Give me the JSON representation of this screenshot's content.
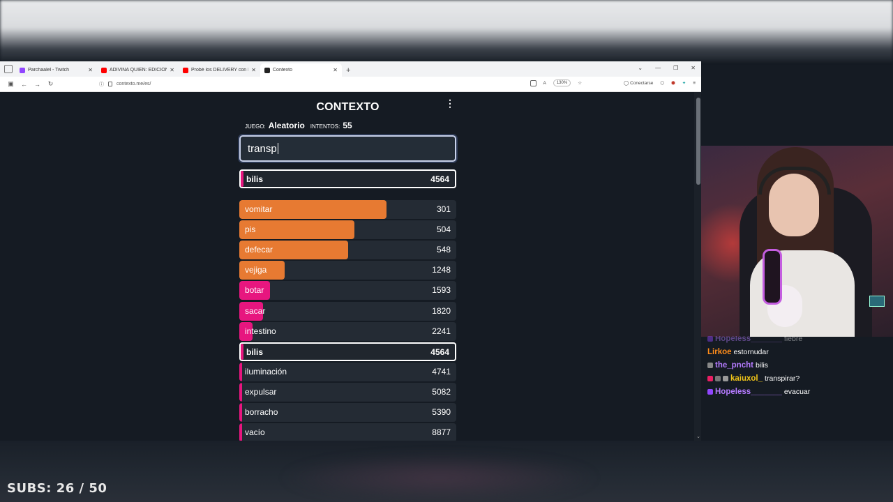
{
  "browser": {
    "tabs": [
      {
        "label": "Parchaalel - Twitch",
        "fav_color": "#9146ff",
        "active": false
      },
      {
        "label": "ADIVINA QUIÉN: EDICIÓN FAM",
        "fav_color": "#ff0000",
        "active": false
      },
      {
        "label": "Probé los DELIVERY con PEORE",
        "fav_color": "#ff0000",
        "active": false
      },
      {
        "label": "Contexto",
        "fav_color": "#222222",
        "active": true
      }
    ],
    "new_tab_label": "+",
    "url": "contexto.me/es/",
    "zoom": "130%",
    "sign_in_label": "Conectarse"
  },
  "game": {
    "title": "CONTEXTO",
    "menu_icon": "⋮",
    "game_label": "JUEGO:",
    "game_value": "Aleatorio",
    "attempts_label": "INTENTOS:",
    "attempts_value": "55",
    "input_value": "transp",
    "last_guess": {
      "word": "bilis",
      "rank": "4564",
      "bar_fraction": 0.01,
      "color": "#e7167f"
    },
    "guesses": [
      {
        "word": "vomitar",
        "rank": "301",
        "bar_fraction": 0.68,
        "color": "#e77a32"
      },
      {
        "word": "pis",
        "rank": "504",
        "bar_fraction": 0.53,
        "color": "#e77a32"
      },
      {
        "word": "defecar",
        "rank": "548",
        "bar_fraction": 0.5,
        "color": "#e77a32"
      },
      {
        "word": "vejiga",
        "rank": "1248",
        "bar_fraction": 0.21,
        "color": "#e77a32"
      },
      {
        "word": "botar",
        "rank": "1593",
        "bar_fraction": 0.14,
        "color": "#e7167f"
      },
      {
        "word": "sacar",
        "rank": "1820",
        "bar_fraction": 0.11,
        "color": "#e7167f"
      },
      {
        "word": "intestino",
        "rank": "2241",
        "bar_fraction": 0.06,
        "color": "#e7167f"
      },
      {
        "word": "bilis",
        "rank": "4564",
        "bar_fraction": 0.01,
        "color": "#e7167f",
        "highlight": true
      },
      {
        "word": "iluminación",
        "rank": "4741",
        "bar_fraction": 0.01,
        "color": "#e7167f"
      },
      {
        "word": "expulsar",
        "rank": "5082",
        "bar_fraction": 0.01,
        "color": "#e7167f"
      },
      {
        "word": "borracho",
        "rank": "5390",
        "bar_fraction": 0.01,
        "color": "#e7167f"
      },
      {
        "word": "vacío",
        "rank": "8877",
        "bar_fraction": 0.01,
        "color": "#e7167f"
      }
    ]
  },
  "chat": {
    "messages": [
      {
        "user": "Hopeless_______",
        "text": "fiebre",
        "color": "#b57bff",
        "faded": true
      },
      {
        "user": "Lirkoe",
        "text": "estornudar",
        "color": "#ff8c1a"
      },
      {
        "user": "the_pncht",
        "text": "bilis",
        "color": "#b57bff"
      },
      {
        "user": "kaiuxol_",
        "text": "transpirar?",
        "color": "#f0c419"
      },
      {
        "user": "Hopeless_______",
        "text": "evacuar",
        "color": "#b57bff"
      }
    ]
  },
  "overlay": {
    "subs": "SUBS: 26 / 50"
  }
}
